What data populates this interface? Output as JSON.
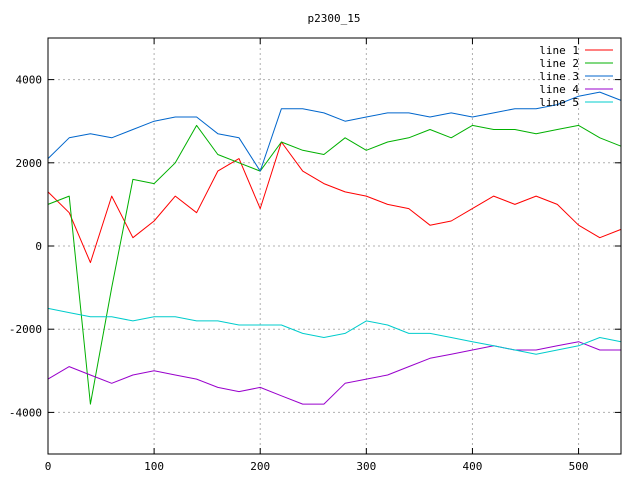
{
  "chart_data": {
    "type": "line",
    "title": "p2300_15",
    "xlabel": "",
    "ylabel": "",
    "xlim": [
      0,
      540
    ],
    "ylim": [
      -5000,
      5000
    ],
    "x_ticks": [
      0,
      100,
      200,
      300,
      400,
      500
    ],
    "y_ticks": [
      -4000,
      -2000,
      0,
      2000,
      4000
    ],
    "x_tick_labels": [
      "0",
      "100",
      "200",
      "300",
      "400",
      "500"
    ],
    "y_tick_labels": [
      "-4000",
      "-2000",
      "0",
      "2000",
      "4000"
    ],
    "grid": true,
    "legend_position": "top-right",
    "x": [
      0,
      20,
      40,
      60,
      80,
      100,
      120,
      140,
      160,
      180,
      200,
      220,
      240,
      260,
      280,
      300,
      320,
      340,
      360,
      380,
      400,
      420,
      440,
      460,
      480,
      500,
      520,
      540
    ],
    "series": [
      {
        "name": "line 1",
        "color": "#ff0000",
        "values": [
          1300,
          800,
          -400,
          1200,
          200,
          600,
          1200,
          800,
          1800,
          2100,
          900,
          2500,
          1800,
          1500,
          1300,
          1200,
          1000,
          900,
          500,
          600,
          900,
          1200,
          1000,
          1200,
          1000,
          500,
          200,
          400
        ]
      },
      {
        "name": "line 2",
        "color": "#00b000",
        "values": [
          1000,
          1200,
          -3800,
          -1000,
          1600,
          1500,
          2000,
          2900,
          2200,
          2000,
          1800,
          2500,
          2300,
          2200,
          2600,
          2300,
          2500,
          2600,
          2800,
          2600,
          2900,
          2800,
          2800,
          2700,
          2800,
          2900,
          2600,
          2400
        ]
      },
      {
        "name": "line 3",
        "color": "#0066cc",
        "values": [
          2100,
          2600,
          2700,
          2600,
          2800,
          3000,
          3100,
          3100,
          2700,
          2600,
          1800,
          3300,
          3300,
          3200,
          3000,
          3100,
          3200,
          3200,
          3100,
          3200,
          3100,
          3200,
          3300,
          3300,
          3400,
          3600,
          3700,
          3500
        ]
      },
      {
        "name": "line 4",
        "color": "#9900cc",
        "values": [
          -3200,
          -2900,
          -3100,
          -3300,
          -3100,
          -3000,
          -3100,
          -3200,
          -3400,
          -3500,
          -3400,
          -3600,
          -3800,
          -3800,
          -3300,
          -3200,
          -3100,
          -2900,
          -2700,
          -2600,
          -2500,
          -2400,
          -2500,
          -2500,
          -2400,
          -2300,
          -2500,
          -2500
        ]
      },
      {
        "name": "line 5",
        "color": "#00cccc",
        "values": [
          -1500,
          -1600,
          -1700,
          -1700,
          -1800,
          -1700,
          -1700,
          -1800,
          -1800,
          -1900,
          -1900,
          -1900,
          -2100,
          -2200,
          -2100,
          -1800,
          -1900,
          -2100,
          -2100,
          -2200,
          -2300,
          -2400,
          -2500,
          -2600,
          -2500,
          -2400,
          -2200,
          -2300
        ]
      }
    ]
  }
}
